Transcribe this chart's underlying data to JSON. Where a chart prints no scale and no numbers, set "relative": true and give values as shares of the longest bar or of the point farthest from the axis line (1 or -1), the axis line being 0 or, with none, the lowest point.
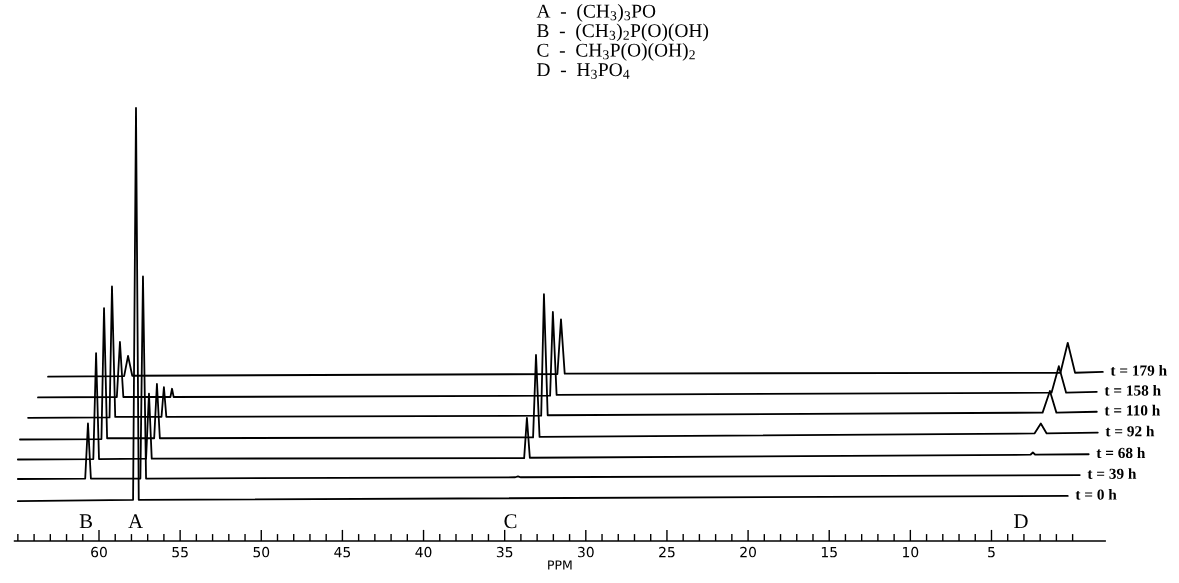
{
  "chart_data": {
    "type": "line",
    "relative": true,
    "xlabel": "PPM",
    "tick_labels": "x",
    "xlim": [
      65.2,
      -2.0
    ],
    "xticks": [
      {
        "value": 65,
        "label": null
      },
      {
        "value": 64,
        "label": null
      },
      {
        "value": 63,
        "label": null
      },
      {
        "value": 62,
        "label": null
      },
      {
        "value": 61,
        "label": null
      },
      60,
      {
        "value": 59,
        "label": null
      },
      {
        "value": 58,
        "label": null
      },
      {
        "value": 57,
        "label": null
      },
      {
        "value": 56,
        "label": null
      },
      55,
      {
        "value": 54,
        "label": null
      },
      {
        "value": 53,
        "label": null
      },
      {
        "value": 52,
        "label": null
      },
      {
        "value": 51,
        "label": null
      },
      50,
      {
        "value": 49,
        "label": null
      },
      {
        "value": 48,
        "label": null
      },
      {
        "value": 47,
        "label": null
      },
      {
        "value": 46,
        "label": null
      },
      45,
      {
        "value": 44,
        "label": null
      },
      {
        "value": 43,
        "label": null
      },
      {
        "value": 42,
        "label": null
      },
      {
        "value": 41,
        "label": null
      },
      40,
      {
        "value": 39,
        "label": null
      },
      {
        "value": 38,
        "label": null
      },
      {
        "value": 37,
        "label": null
      },
      {
        "value": 36,
        "label": null
      },
      35,
      {
        "value": 34,
        "label": null
      },
      {
        "value": 33,
        "label": null
      },
      {
        "value": 32,
        "label": null
      },
      {
        "value": 31,
        "label": null
      },
      30,
      {
        "value": 29,
        "label": null
      },
      {
        "value": 28,
        "label": null
      },
      {
        "value": 27,
        "label": null
      },
      {
        "value": 26,
        "label": null
      },
      25,
      {
        "value": 24,
        "label": null
      },
      {
        "value": 23,
        "label": null
      },
      {
        "value": 22,
        "label": null
      },
      {
        "value": 21,
        "label": null
      },
      20,
      {
        "value": 19,
        "label": null
      },
      {
        "value": 18,
        "label": null
      },
      {
        "value": 17,
        "label": null
      },
      {
        "value": 16,
        "label": null
      },
      15,
      {
        "value": 14,
        "label": null
      },
      {
        "value": 13,
        "label": null
      },
      {
        "value": 12,
        "label": null
      },
      {
        "value": 11,
        "label": null
      },
      10,
      {
        "value": 9,
        "label": null
      },
      {
        "value": 8,
        "label": null
      },
      {
        "value": 7,
        "label": null
      },
      {
        "value": 6,
        "label": null
      },
      5,
      {
        "value": 4,
        "label": null
      },
      {
        "value": 3,
        "label": null
      },
      {
        "value": 2,
        "label": null
      },
      {
        "value": 1,
        "label": null
      },
      {
        "value": 0,
        "label": null
      }
    ],
    "series": [
      {
        "name": "t = 0 h",
        "color": "#000000",
        "x": [
          65,
          57.9,
          57.72,
          57.55,
          0.3
        ],
        "values": [
          0.092,
          0.095,
          1.0,
          0.095,
          0.104
        ]
      },
      {
        "name": "t = 39 h",
        "color": "#000000",
        "x": [
          65,
          60.85,
          60.68,
          60.5,
          57.45,
          57.29,
          57.1,
          34.35,
          34.18,
          34.0,
          -0.44
        ],
        "values": [
          0.143,
          0.144,
          0.271,
          0.144,
          0.144,
          0.61,
          0.144,
          0.147,
          0.149,
          0.147,
          0.152
        ]
      },
      {
        "name": "t = 68 h",
        "color": "#000000",
        "x": [
          65,
          60.35,
          60.18,
          60.0,
          57.1,
          56.92,
          56.75,
          33.8,
          33.63,
          33.45,
          2.6,
          2.45,
          2.3,
          -0.99
        ],
        "values": [
          0.188,
          0.189,
          0.433,
          0.189,
          0.19,
          0.34,
          0.19,
          0.191,
          0.284,
          0.192,
          0.199,
          0.204,
          0.199,
          0.2
        ]
      },
      {
        "name": "t = 92 h",
        "color": "#000000",
        "x": [
          64.87,
          59.85,
          59.69,
          59.5,
          56.6,
          56.43,
          56.25,
          33.25,
          33.07,
          32.85,
          2.35,
          1.96,
          1.6,
          -1.55
        ],
        "values": [
          0.234,
          0.235,
          0.537,
          0.237,
          0.237,
          0.362,
          0.237,
          0.239,
          0.429,
          0.24,
          0.248,
          0.271,
          0.248,
          0.25
        ]
      },
      {
        "name": "t = 110 h",
        "color": "#000000",
        "x": [
          64.37,
          59.35,
          59.2,
          59.0,
          56.15,
          56.0,
          55.85,
          32.75,
          32.58,
          32.35,
          1.85,
          1.4,
          1.0,
          -1.49
        ],
        "values": [
          0.284,
          0.285,
          0.587,
          0.286,
          0.286,
          0.355,
          0.286,
          0.289,
          0.569,
          0.29,
          0.296,
          0.346,
          0.296,
          0.298
        ]
      },
      {
        "name": "t = 158 h",
        "color": "#000000",
        "x": [
          63.76,
          58.9,
          58.71,
          58.5,
          55.6,
          55.5,
          55.4,
          32.2,
          32.03,
          31.8,
          1.3,
          0.85,
          0.4,
          -1.49
        ],
        "values": [
          0.331,
          0.332,
          0.459,
          0.332,
          0.332,
          0.351,
          0.332,
          0.335,
          0.528,
          0.337,
          0.342,
          0.403,
          0.342,
          0.344
        ]
      },
      {
        "name": "t = 179 h",
        "color": "#000000",
        "x": [
          63.14,
          58.45,
          58.21,
          57.95,
          31.75,
          31.53,
          31.3,
          0.75,
          0.3,
          -0.15,
          -1.86
        ],
        "values": [
          0.379,
          0.38,
          0.427,
          0.381,
          0.385,
          0.511,
          0.386,
          0.388,
          0.457,
          0.388,
          0.39
        ]
      }
    ],
    "annotations": [
      "A  -  (CH$_{3}$)$_{3}$PO",
      "B  -  (CH$_{3}$)$_{2}$P(O)(OH)",
      "C  -  CH$_{3}$P(O)(OH)$_{2}$",
      "D  -  H$_{3}$PO$_{4}$",
      "B",
      "A",
      "C",
      "D"
    ]
  }
}
